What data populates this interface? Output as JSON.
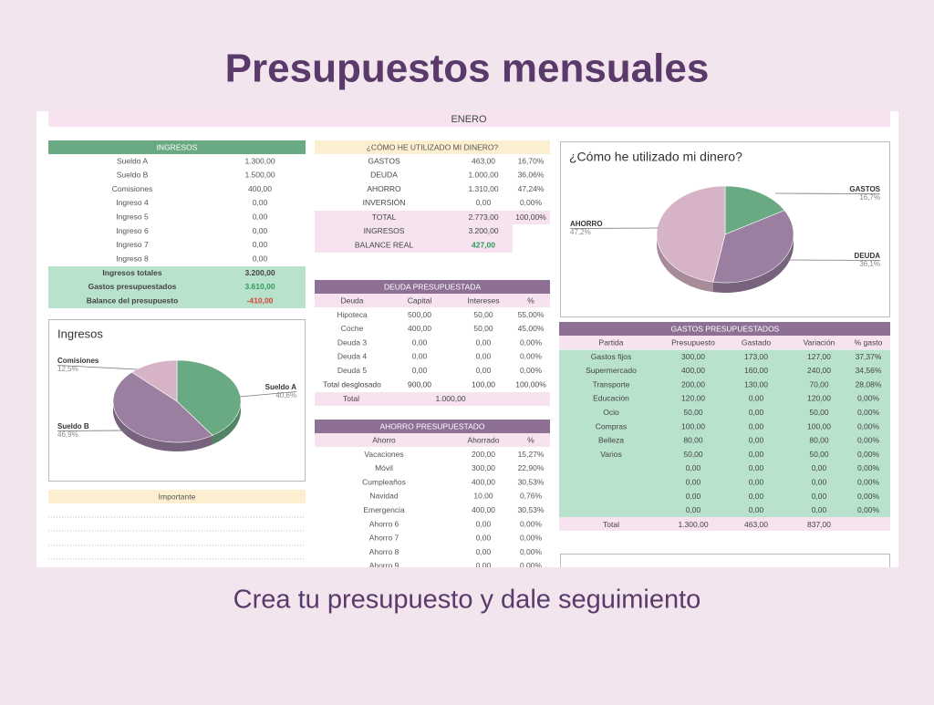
{
  "header": {
    "title": "Presupuestos mensuales",
    "subtitle": "Crea tu presupuesto y dale seguimiento"
  },
  "sheet": {
    "month": "ENERO",
    "ingresos": {
      "title": "INGRESOS",
      "rows": [
        [
          "Sueldo A",
          "1.300,00"
        ],
        [
          "Sueldo B",
          "1.500,00"
        ],
        [
          "Comisiones",
          "400,00"
        ],
        [
          "Ingreso 4",
          "0,00"
        ],
        [
          "Ingreso 5",
          "0,00"
        ],
        [
          "Ingreso 6",
          "0,00"
        ],
        [
          "Ingreso 7",
          "0,00"
        ],
        [
          "Ingreso 8",
          "0,00"
        ]
      ],
      "totals": [
        [
          "Ingresos totales",
          "3.200,00"
        ],
        [
          "Gastos presupuestados",
          "3.610,00"
        ],
        [
          "Balance del presupuesto",
          "-410,00"
        ]
      ]
    },
    "uso": {
      "title": "¿CÓMO HE UTILIZADO MI DINERO?",
      "rows": [
        [
          "GASTOS",
          "463,00",
          "16,70%"
        ],
        [
          "DEUDA",
          "1.000,00",
          "36,06%"
        ],
        [
          "AHORRO",
          "1.310,00",
          "47,24%"
        ],
        [
          "INVERSIÓN",
          "0,00",
          "0,00%"
        ]
      ],
      "summary": [
        [
          "TOTAL",
          "2.773,00",
          "100,00%"
        ],
        [
          "INGRESOS",
          "3.200,00"
        ],
        [
          "BALANCE REAL",
          "427,00"
        ]
      ]
    },
    "deuda": {
      "title": "DEUDA PRESUPUESTADA",
      "header": [
        "Deuda",
        "Capital",
        "Intereses",
        "%"
      ],
      "rows": [
        [
          "Hipoteca",
          "500,00",
          "50,00",
          "55,00%"
        ],
        [
          "Coche",
          "400,00",
          "50,00",
          "45,00%"
        ],
        [
          "Deuda 3",
          "0,00",
          "0,00",
          "0,00%"
        ],
        [
          "Deuda 4",
          "0,00",
          "0,00",
          "0,00%"
        ],
        [
          "Deuda 5",
          "0,00",
          "0,00",
          "0,00%"
        ],
        [
          "Total desglosado",
          "900,00",
          "100,00",
          "100,00%"
        ]
      ],
      "total": [
        "Total",
        "1.000,00"
      ]
    },
    "ahorro": {
      "title": "AHORRO PRESUPUESTADO",
      "header": [
        "Ahorro",
        "Ahorrado",
        "%"
      ],
      "rows": [
        [
          "Vacaciones",
          "200,00",
          "15,27%"
        ],
        [
          "Móvil",
          "300,00",
          "22,90%"
        ],
        [
          "Cumpleaños",
          "400,00",
          "30,53%"
        ],
        [
          "Navidad",
          "10,00",
          "0,76%"
        ],
        [
          "Emergencia",
          "400,00",
          "30,53%"
        ],
        [
          "Ahorro 6",
          "0,00",
          "0,00%"
        ],
        [
          "Ahorro 7",
          "0,00",
          "0,00%"
        ],
        [
          "Ahorro 8",
          "0,00",
          "0,00%"
        ],
        [
          "Ahorro 9",
          "0,00",
          "0,00%"
        ]
      ]
    },
    "gastos": {
      "title": "GASTOS PRESUPUESTADOS",
      "header": [
        "Partida",
        "Presupuesto",
        "Gastado",
        "Variación",
        "% gasto"
      ],
      "rows": [
        [
          "Gastos fijos",
          "300,00",
          "173,00",
          "127,00",
          "37,37%"
        ],
        [
          "Supermercado",
          "400,00",
          "160,00",
          "240,00",
          "34,56%"
        ],
        [
          "Transporte",
          "200,00",
          "130,00",
          "70,00",
          "28,08%"
        ],
        [
          "Educación",
          "120,00",
          "0,00",
          "120,00",
          "0,00%"
        ],
        [
          "Ocio",
          "50,00",
          "0,00",
          "50,00",
          "0,00%"
        ],
        [
          "Compras",
          "100,00",
          "0,00",
          "100,00",
          "0,00%"
        ],
        [
          "Belleza",
          "80,00",
          "0,00",
          "80,00",
          "0,00%"
        ],
        [
          "Varios",
          "50,00",
          "0,00",
          "50,00",
          "0,00%"
        ],
        [
          null,
          "0,00",
          "0,00",
          "0,00",
          "0,00%"
        ],
        [
          null,
          "0,00",
          "0,00",
          "0,00",
          "0,00%"
        ],
        [
          null,
          "0,00",
          "0,00",
          "0,00",
          "0,00%"
        ],
        [
          null,
          "0,00",
          "0,00",
          "0,00",
          "0,00%"
        ]
      ],
      "total": [
        "Total",
        "1.300,00",
        "463,00",
        "837,00"
      ]
    },
    "importante": "Importante"
  },
  "chart_data": [
    {
      "type": "pie",
      "title": "Ingresos",
      "categories": [
        "Sueldo A",
        "Sueldo B",
        "Comisiones"
      ],
      "values": [
        40.6,
        46.9,
        12.5
      ],
      "value_labels": [
        "40,6%",
        "46,9%",
        "12,5%"
      ],
      "colors": [
        "#6aaa82",
        "#9a7fa0",
        "#d6b3c6"
      ]
    },
    {
      "type": "pie",
      "title": "¿Cómo he utilizado mi dinero?",
      "categories": [
        "GASTOS",
        "DEUDA",
        "AHORRO"
      ],
      "values": [
        16.7,
        36.1,
        47.2
      ],
      "value_labels": [
        "16,7%",
        "36,1%",
        "47,2%"
      ],
      "colors": [
        "#6aaa82",
        "#9a7fa0",
        "#d6b3c6"
      ]
    }
  ]
}
